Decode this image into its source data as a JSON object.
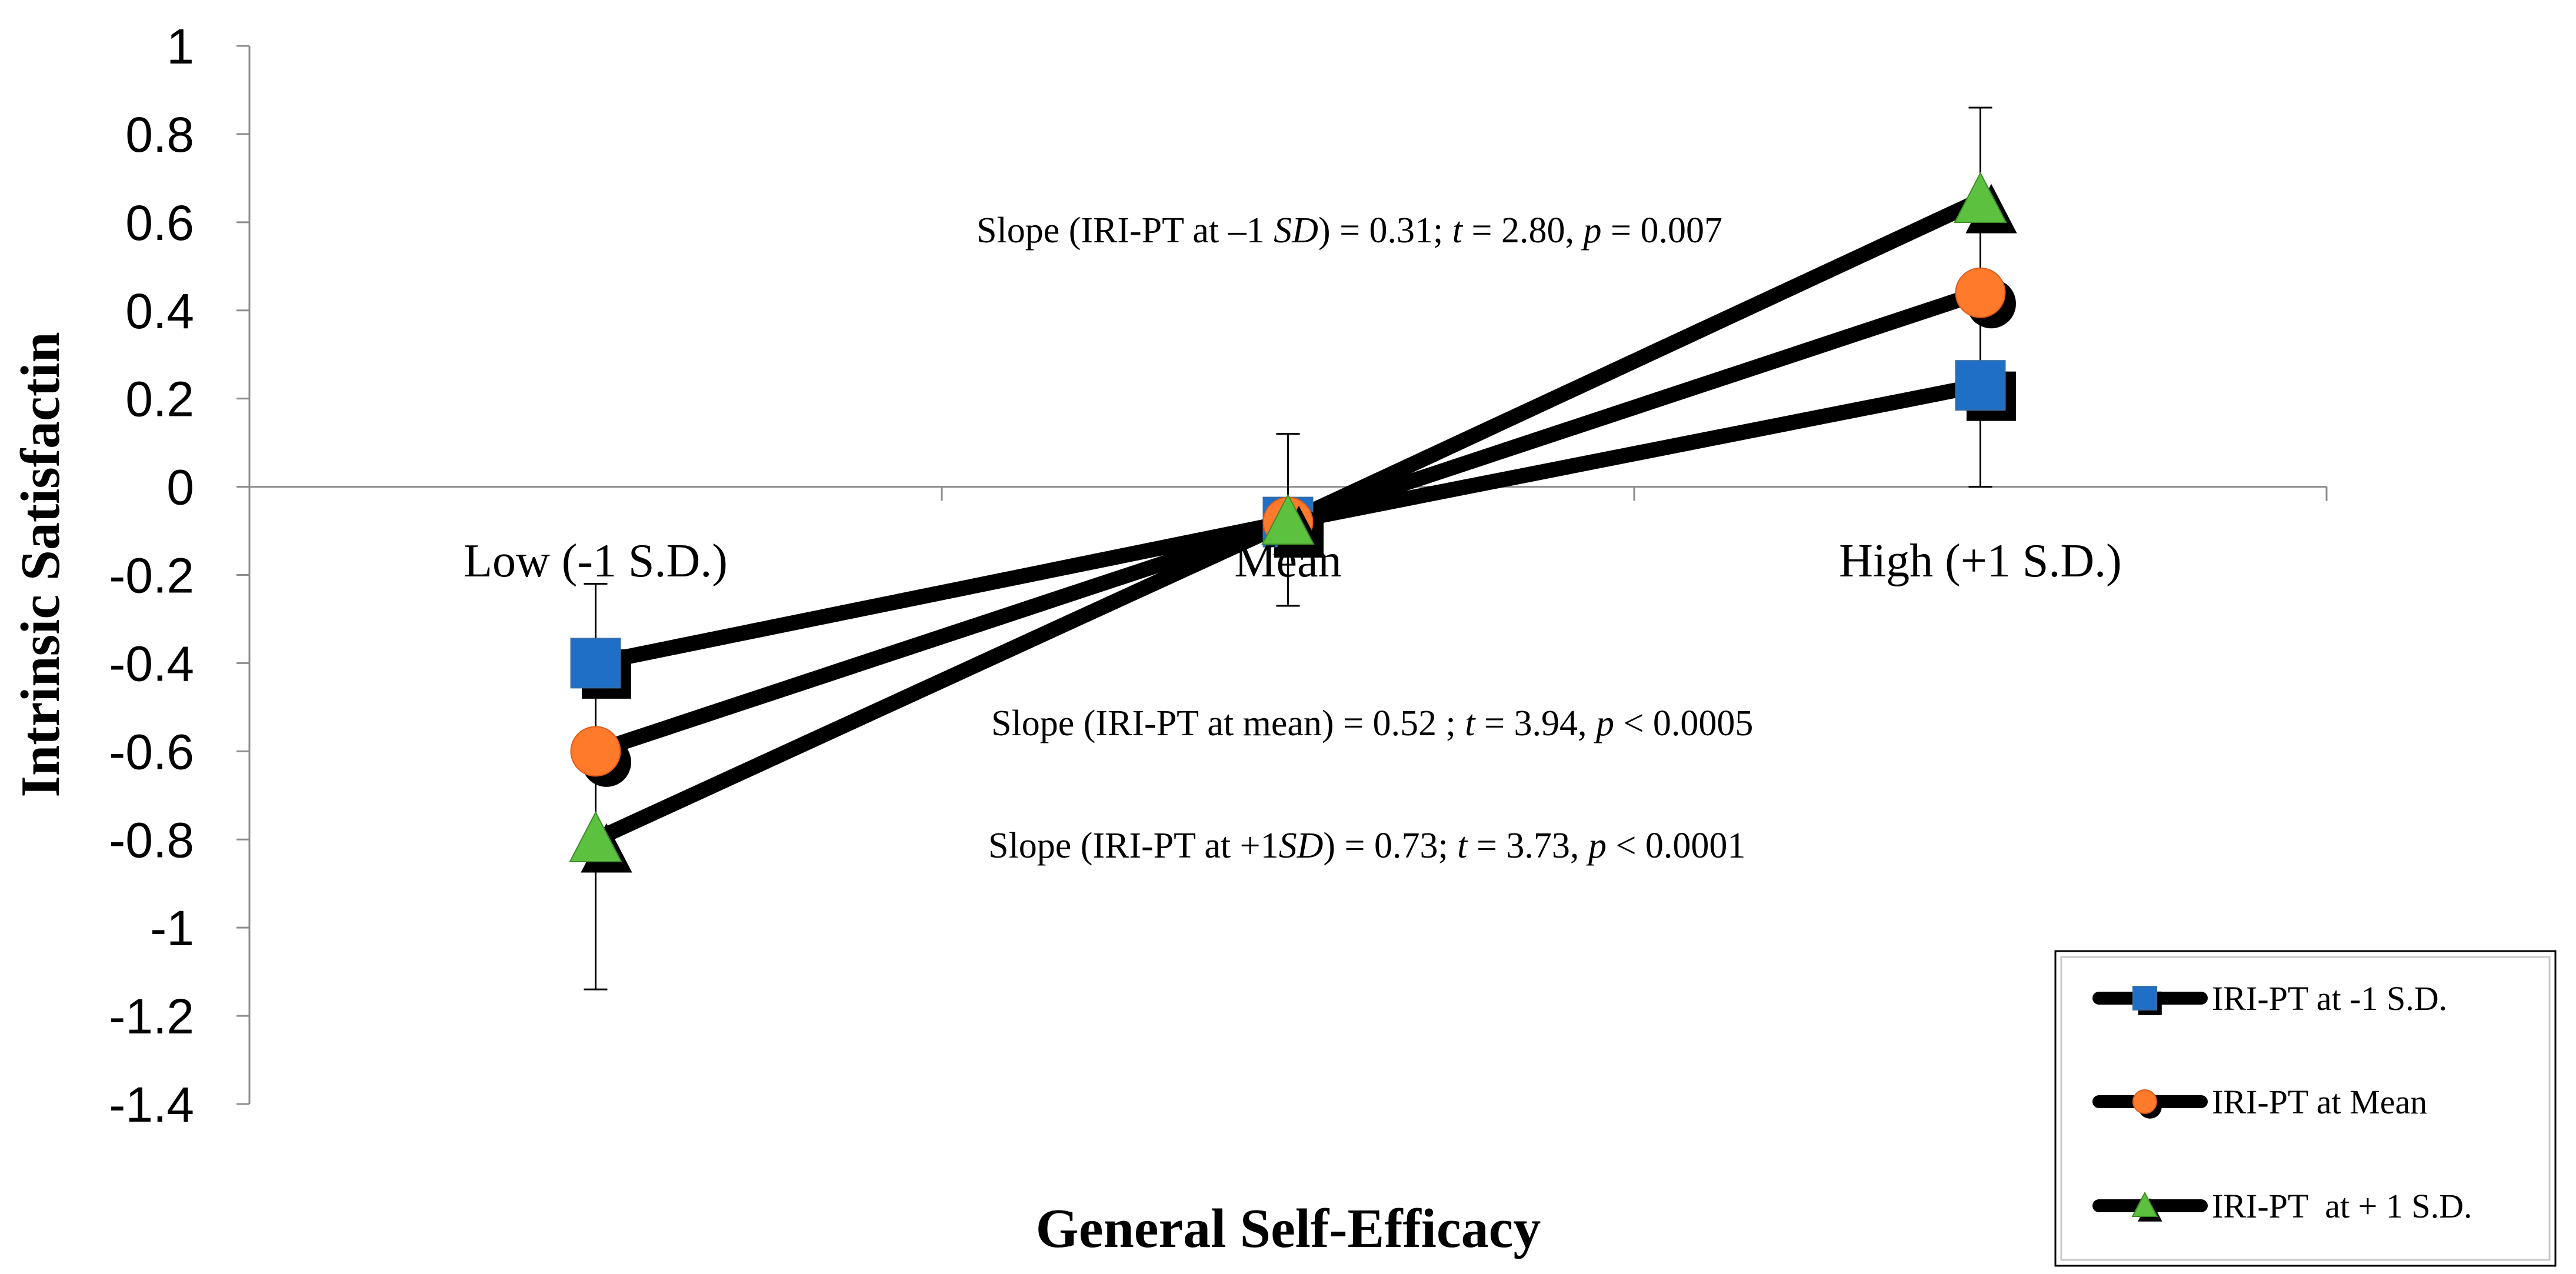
{
  "chart_data": {
    "type": "line",
    "title": "",
    "xlabel": "General Self-Efficacy",
    "ylabel": "Intrinsic Satisfactin",
    "categories": [
      "Low (-1 S.D.)",
      "Mean",
      "High (+1 S.D.)"
    ],
    "ylim": [
      -1.4,
      1
    ],
    "y_ticks": [
      "1",
      "0.8",
      "0.6",
      "0.4",
      "0.2",
      "0",
      "-0.2",
      "-0.4",
      "-0.6",
      "-0.8",
      "-1",
      "-1.2",
      "-1.4"
    ],
    "grid": false,
    "legend_position": "bottom-right",
    "series": [
      {
        "name": "IRI-PT at -1 S.D.",
        "marker": "square",
        "color": "#1f6fc6",
        "values": [
          -0.4,
          -0.08,
          0.23
        ]
      },
      {
        "name": "IRI-PT at Mean",
        "marker": "circle",
        "color": "#ff7a2b",
        "values": [
          -0.6,
          -0.08,
          0.44
        ]
      },
      {
        "name": "IRI-PT  at + 1 S.D.",
        "marker": "triangle",
        "color": "#5cc13f",
        "values": [
          -0.8,
          -0.08,
          0.65
        ]
      }
    ],
    "error_bars": [
      {
        "category": "Low (-1 S.D.)",
        "low": -1.14,
        "high": -0.22
      },
      {
        "category": "Mean",
        "low": -0.27,
        "high": 0.12
      },
      {
        "category": "High (+1 S.D.)",
        "low": 0.0,
        "high": 0.86
      }
    ],
    "annotations": [
      [
        "Slope (IRI-PT at –1 ",
        "SD",
        ") = 0.31; ",
        "t",
        " = 2.80, ",
        "p",
        " = 0.007"
      ],
      [
        "Slope (IRI-PT at mean) = 0.52 ; ",
        "t",
        " = 3.94, ",
        "p",
        " < 0.0005"
      ],
      [
        "Slope (IRI-PT at +1",
        "SD",
        ") = 0.73; ",
        "t",
        " = 3.73, ",
        "p",
        " < 0.0001"
      ]
    ]
  }
}
